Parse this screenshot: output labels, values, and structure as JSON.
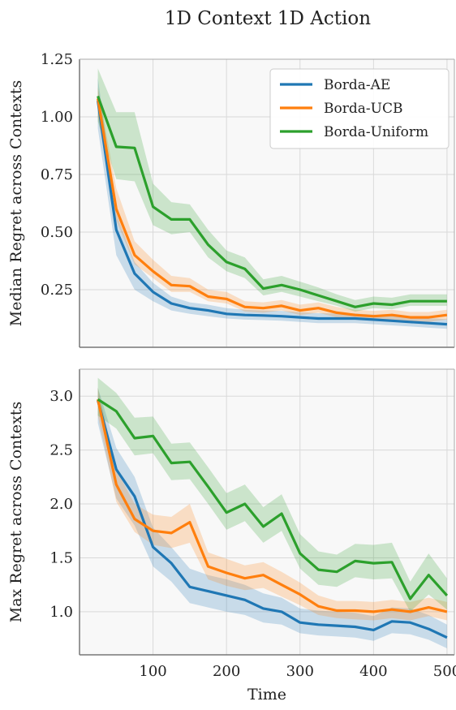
{
  "figure": {
    "title": "1D Context 1D Action"
  },
  "legend": {
    "position": "top-right",
    "entries": [
      {
        "name": "Borda-AE",
        "color": "#1f77b4"
      },
      {
        "name": "Borda-UCB",
        "color": "#ff7f0e"
      },
      {
        "name": "Borda-Uniform",
        "color": "#2ca02c"
      }
    ]
  },
  "chart_data": [
    {
      "type": "line",
      "title": "",
      "xlabel": "",
      "ylabel": "Median Regret across Contexts",
      "xlim": [
        0,
        510
      ],
      "ylim": [
        0.0,
        1.25
      ],
      "xticks": [
        100,
        200,
        300,
        400,
        500
      ],
      "yticks": [
        0.25,
        0.5,
        0.75,
        1.0,
        1.25
      ],
      "ytick_labels": [
        "0.25",
        "0.50",
        "0.75",
        "1.00",
        "1.25"
      ],
      "grid": true,
      "x": [
        25,
        50,
        75,
        100,
        125,
        150,
        175,
        200,
        225,
        250,
        275,
        300,
        325,
        350,
        375,
        400,
        425,
        450,
        475,
        500
      ],
      "series": [
        {
          "name": "Borda-AE",
          "color": "#1f77b4",
          "values": [
            1.07,
            0.51,
            0.32,
            0.24,
            0.19,
            0.17,
            0.16,
            0.145,
            0.14,
            0.138,
            0.135,
            0.13,
            0.125,
            0.125,
            0.125,
            0.12,
            0.115,
            0.11,
            0.105,
            0.1
          ],
          "lower": [
            0.95,
            0.4,
            0.25,
            0.2,
            0.16,
            0.145,
            0.135,
            0.125,
            0.12,
            0.118,
            0.115,
            0.11,
            0.105,
            0.105,
            0.105,
            0.1,
            0.095,
            0.09,
            0.085,
            0.08
          ],
          "upper": [
            1.17,
            0.58,
            0.37,
            0.28,
            0.22,
            0.195,
            0.185,
            0.17,
            0.163,
            0.16,
            0.158,
            0.152,
            0.148,
            0.147,
            0.147,
            0.142,
            0.137,
            0.132,
            0.127,
            0.122
          ]
        },
        {
          "name": "Borda-UCB",
          "color": "#ff7f0e",
          "values": [
            1.08,
            0.6,
            0.4,
            0.33,
            0.27,
            0.265,
            0.22,
            0.21,
            0.175,
            0.17,
            0.18,
            0.16,
            0.17,
            0.15,
            0.14,
            0.135,
            0.14,
            0.13,
            0.13,
            0.14
          ],
          "lower": [
            1.0,
            0.55,
            0.36,
            0.3,
            0.24,
            0.24,
            0.2,
            0.19,
            0.155,
            0.15,
            0.16,
            0.14,
            0.15,
            0.13,
            0.12,
            0.115,
            0.12,
            0.11,
            0.11,
            0.12
          ],
          "upper": [
            1.13,
            0.69,
            0.46,
            0.38,
            0.31,
            0.3,
            0.25,
            0.24,
            0.2,
            0.195,
            0.205,
            0.185,
            0.195,
            0.175,
            0.163,
            0.158,
            0.163,
            0.153,
            0.153,
            0.163
          ]
        },
        {
          "name": "Borda-Uniform",
          "color": "#2ca02c",
          "values": [
            1.09,
            0.87,
            0.865,
            0.61,
            0.555,
            0.555,
            0.445,
            0.37,
            0.34,
            0.255,
            0.27,
            0.25,
            0.225,
            0.2,
            0.175,
            0.19,
            0.185,
            0.2,
            0.2,
            0.2
          ],
          "lower": [
            0.98,
            0.73,
            0.72,
            0.53,
            0.49,
            0.5,
            0.39,
            0.33,
            0.3,
            0.225,
            0.24,
            0.22,
            0.2,
            0.18,
            0.155,
            0.17,
            0.165,
            0.18,
            0.18,
            0.18
          ],
          "upper": [
            1.21,
            1.02,
            1.02,
            0.71,
            0.63,
            0.62,
            0.51,
            0.42,
            0.39,
            0.295,
            0.31,
            0.285,
            0.26,
            0.23,
            0.205,
            0.22,
            0.215,
            0.23,
            0.23,
            0.23
          ]
        }
      ]
    },
    {
      "type": "line",
      "title": "",
      "xlabel": "Time",
      "ylabel": "Max Regret across Contexts",
      "xlim": [
        0,
        510
      ],
      "ylim": [
        0.6,
        3.25
      ],
      "xticks": [
        100,
        200,
        300,
        400,
        500
      ],
      "xtick_labels": [
        "100",
        "200",
        "300",
        "400",
        "500"
      ],
      "yticks": [
        1.0,
        1.5,
        2.0,
        2.5,
        3.0
      ],
      "ytick_labels": [
        "1.0",
        "1.5",
        "2.0",
        "2.5",
        "3.0"
      ],
      "grid": true,
      "x": [
        25,
        50,
        75,
        100,
        125,
        150,
        175,
        200,
        225,
        250,
        275,
        300,
        325,
        350,
        375,
        400,
        425,
        450,
        475,
        500
      ],
      "series": [
        {
          "name": "Borda-AE",
          "color": "#1f77b4",
          "values": [
            2.96,
            2.32,
            2.07,
            1.6,
            1.45,
            1.23,
            1.19,
            1.15,
            1.11,
            1.03,
            1.0,
            0.9,
            0.88,
            0.87,
            0.86,
            0.83,
            0.91,
            0.9,
            0.84,
            0.76
          ],
          "lower": [
            2.75,
            2.05,
            1.8,
            1.42,
            1.28,
            1.08,
            1.04,
            1.0,
            0.97,
            0.9,
            0.88,
            0.8,
            0.78,
            0.77,
            0.76,
            0.73,
            0.8,
            0.79,
            0.74,
            0.66
          ],
          "upper": [
            3.08,
            2.52,
            2.25,
            1.78,
            1.6,
            1.4,
            1.34,
            1.3,
            1.25,
            1.17,
            1.13,
            1.03,
            1.01,
            1.0,
            0.99,
            0.96,
            1.04,
            1.03,
            0.97,
            0.88
          ]
        },
        {
          "name": "Borda-UCB",
          "color": "#ff7f0e",
          "values": [
            2.97,
            2.18,
            1.86,
            1.75,
            1.73,
            1.83,
            1.42,
            1.36,
            1.31,
            1.34,
            1.25,
            1.16,
            1.05,
            1.01,
            1.01,
            1.0,
            1.02,
            1.0,
            1.04,
            1.0
          ],
          "lower": [
            2.82,
            2.02,
            1.74,
            1.62,
            1.59,
            1.64,
            1.3,
            1.24,
            1.2,
            1.22,
            1.14,
            1.06,
            0.97,
            0.94,
            0.93,
            0.92,
            0.94,
            0.92,
            0.96,
            0.92
          ],
          "upper": [
            3.08,
            2.32,
            2.0,
            1.9,
            1.88,
            2.0,
            1.55,
            1.49,
            1.43,
            1.46,
            1.37,
            1.27,
            1.15,
            1.1,
            1.1,
            1.09,
            1.11,
            1.09,
            1.13,
            1.09
          ]
        },
        {
          "name": "Borda-Uniform",
          "color": "#2ca02c",
          "values": [
            2.97,
            2.86,
            2.61,
            2.63,
            2.38,
            2.39,
            2.16,
            1.92,
            2.0,
            1.79,
            1.91,
            1.54,
            1.39,
            1.37,
            1.47,
            1.45,
            1.46,
            1.12,
            1.34,
            1.15
          ],
          "lower": [
            2.82,
            2.7,
            2.45,
            2.47,
            2.22,
            2.23,
            2.0,
            1.76,
            1.84,
            1.64,
            1.75,
            1.4,
            1.25,
            1.23,
            1.32,
            1.3,
            1.31,
            1.0,
            1.16,
            1.02
          ],
          "upper": [
            3.17,
            3.03,
            2.8,
            2.81,
            2.56,
            2.57,
            2.34,
            2.1,
            2.18,
            1.97,
            2.09,
            1.72,
            1.56,
            1.53,
            1.63,
            1.62,
            1.64,
            1.28,
            1.54,
            1.31
          ]
        }
      ]
    }
  ]
}
